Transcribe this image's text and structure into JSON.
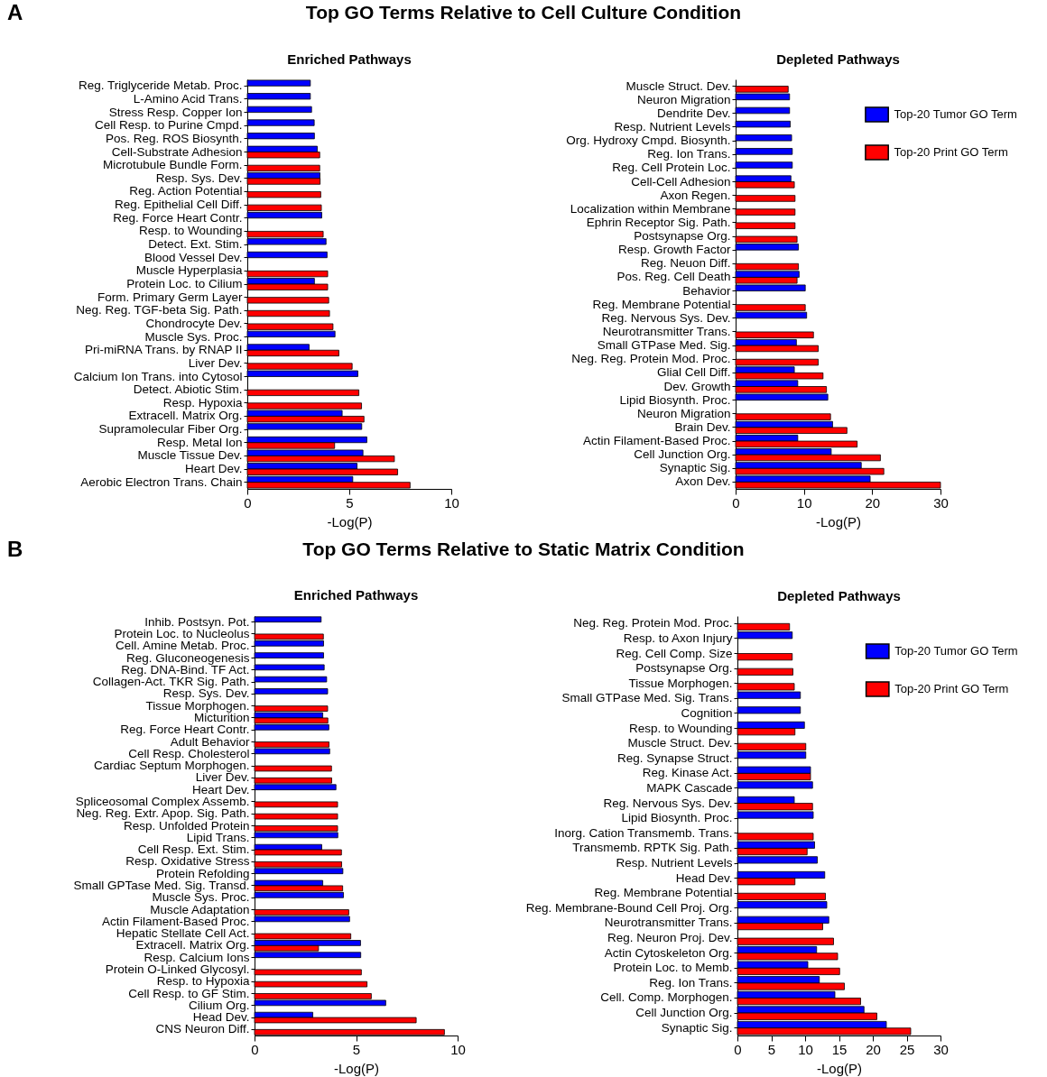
{
  "chart_data": [
    {
      "type": "bar",
      "orientation": "horizontal",
      "title": "Enriched Pathways",
      "xlabel": "-Log(P)",
      "annotations": [
        "A",
        "Top GO Terms Relative to Cell Culture Condition"
      ],
      "categories": [
        "Reg. Triglyceride Metab. Proc.",
        "L-Amino Acid Trans.",
        "Stress Resp. Copper Ion",
        "Cell Resp. to Purine Cmpd.",
        "Pos. Reg. ROS Biosynth.",
        "Cell-Substrate Adhesion",
        "Microtubule Bundle Form.",
        "Resp. Sys. Dev.",
        "Reg. Action Potential",
        "Reg. Epithelial Cell Diff.",
        "Reg. Force Heart Contr.",
        "Resp. to Wounding",
        "Detect. Ext. Stim.",
        "Blood Vessel Dev.",
        "Muscle Hyperplasia",
        "Protein Loc. to Cilium",
        "Form. Primary Germ Layer",
        "Neg. Reg. TGF-beta Sig. Path.",
        "Chondrocyte Dev.",
        "Muscle Sys. Proc.",
        "Pri-miRNA Trans. by RNAP II",
        "Liver Dev.",
        "Calcium Ion Trans. into Cytosol",
        "Detect. Abiotic Stim.",
        "Resp. Hypoxia",
        "Extracell. Matrix Org.",
        "Supramolecular Fiber Org.",
        "Resp. Metal Ion",
        "Muscle Tissue Dev.",
        "Heart Dev.",
        "Aerobic Electron Trans. Chain"
      ],
      "series": [
        {
          "color": "#0000ff",
          "values": [
            3.09,
            3.09,
            3.15,
            3.28,
            3.29,
            3.43,
            null,
            3.56,
            null,
            null,
            3.65,
            null,
            3.86,
            3.91,
            null,
            3.29,
            null,
            null,
            null,
            4.3,
            3.03,
            null,
            5.42,
            null,
            null,
            4.65,
            5.61,
            5.86,
            5.67,
            5.38,
            5.17
          ]
        },
        {
          "color": "#ff0000",
          "values": [
            null,
            null,
            null,
            null,
            null,
            3.55,
            3.55,
            3.57,
            3.6,
            3.63,
            null,
            3.72,
            null,
            null,
            3.94,
            3.94,
            3.99,
            4.03,
            4.2,
            null,
            4.49,
            5.14,
            null,
            5.47,
            5.6,
            5.72,
            null,
            4.28,
            7.21,
            7.37,
            7.98
          ]
        }
      ],
      "xlim": [
        0,
        10
      ],
      "xticks": [
        0,
        5,
        10
      ]
    },
    {
      "type": "bar",
      "orientation": "horizontal",
      "title": "Depleted Pathways",
      "xlabel": "-Log(P)",
      "legend": "top right",
      "categories": [
        "Muscle Struct. Dev.",
        "Neuron Migration",
        "Dendrite Dev.",
        "Resp. Nutrient Levels",
        "Org. Hydroxy Cmpd. Biosynth.",
        "Reg. Ion Trans.",
        "Reg. Cell Protein Loc.",
        "Cell-Cell Adhesion",
        "Axon Regen.",
        "Localization within Membrane",
        "Ephrin Receptor Sig. Path.",
        "Postsynapse Org.",
        "Resp. Growth Factor",
        "Reg. Neuon Diff.",
        "Pos. Reg. Cell Death",
        "Behavior",
        "Reg. Membrane Potential",
        "Reg. Nervous Sys. Dev.",
        "Neurotransmitter Trans.",
        "Small GTPase Med. Sig.",
        "Neg. Reg. Protein Mod. Proc.",
        "Glial Cell Diff.",
        "Dev. Growth",
        "Lipid Biosynth. Proc.",
        "Neuron Migration",
        "Brain Dev.",
        "Actin Filament-Based Proc.",
        "Cell Junction Org.",
        "Synaptic Sig.",
        "Axon Dev."
      ],
      "series": [
        {
          "name": "Top-20 Tumor GO Term",
          "color": "#0000ff",
          "values": [
            null,
            7.9,
            7.9,
            8.0,
            8.2,
            8.3,
            8.3,
            8.1,
            null,
            null,
            null,
            null,
            9.2,
            null,
            9.3,
            10.2,
            null,
            10.4,
            null,
            8.9,
            null,
            8.6,
            9.1,
            13.5,
            null,
            14.2,
            9.1,
            14.0,
            18.4,
            19.7
          ]
        },
        {
          "name": "Top-20 Print GO Term",
          "color": "#ff0000",
          "values": [
            7.7,
            null,
            null,
            null,
            null,
            null,
            null,
            8.6,
            8.7,
            8.7,
            8.7,
            9.0,
            null,
            9.2,
            9.0,
            null,
            10.2,
            null,
            11.4,
            12.1,
            12.1,
            12.8,
            13.3,
            null,
            13.9,
            16.3,
            17.8,
            21.2,
            21.7,
            30.0
          ]
        }
      ],
      "xlim": [
        0,
        30
      ],
      "xticks": [
        0,
        10,
        20,
        30
      ]
    },
    {
      "type": "bar",
      "orientation": "horizontal",
      "title": "Enriched Pathways",
      "xlabel": "-Log(P)",
      "annotations": [
        "B",
        "Top GO Terms Relative to Static Matrix Condition"
      ],
      "categories": [
        "Inhib. Postsyn. Pot.",
        "Protein Loc. to Nucleolus",
        "Cell. Amine Metab. Proc.",
        "Reg. Gluconeogenesis",
        "Reg. DNA-Bind. TF Act.",
        "Collagen-Act. TKR Sig. Path.",
        "Resp. Sys. Dev.",
        "Tissue Morphogen.",
        "Micturition",
        "Reg. Force Heart Contr.",
        "Adult Behavior",
        "Cell Resp. Cholesterol",
        "Cardiac Septum Morphogen.",
        "Liver Dev.",
        "Heart Dev.",
        "Spliceosomal Complex Assemb.",
        "Neg. Reg. Extr. Apop. Sig. Path.",
        "Resp. Unfolded Protein",
        "Lipid Trans.",
        "Cell Resp. Ext. Stim.",
        "Resp. Oxidative Stress",
        "Protein Refolding",
        "Small GPTase Med. Sig. Transd.",
        "Muscle Sys. Proc.",
        "Muscle Adaptation",
        "Actin Filament-Based Proc.",
        "Hepatic Stellate Cell Act.",
        "Extracell. Matrix Org.",
        "Resp. Calcium Ions",
        "Protein O-Linked Glycosyl.",
        "Resp. to Hypoxia",
        "Cell Resp. to GF Stim.",
        "Cilium Org.",
        "Head Dev.",
        "CNS Neuron Diff."
      ],
      "series": [
        {
          "color": "#0000ff",
          "values": [
            3.28,
            null,
            3.4,
            3.4,
            3.43,
            3.55,
            3.6,
            null,
            3.36,
            3.66,
            null,
            3.7,
            null,
            null,
            4.01,
            null,
            null,
            null,
            4.1,
            3.31,
            null,
            4.35,
            3.36,
            4.38,
            null,
            4.68,
            null,
            5.22,
            5.23,
            null,
            null,
            null,
            6.46,
            2.87,
            null
          ]
        },
        {
          "color": "#ff0000",
          "values": [
            null,
            3.39,
            null,
            null,
            null,
            null,
            null,
            3.6,
            3.61,
            null,
            3.67,
            null,
            3.79,
            3.8,
            null,
            4.09,
            4.09,
            4.09,
            null,
            4.28,
            4.29,
            null,
            4.34,
            null,
            4.64,
            null,
            4.74,
            3.15,
            null,
            5.26,
            5.54,
            5.75,
            null,
            7.96,
            9.35
          ]
        }
      ],
      "xlim": [
        0,
        10
      ],
      "xticks": [
        0,
        5,
        10
      ]
    },
    {
      "type": "bar",
      "orientation": "horizontal",
      "title": "Depleted Pathways",
      "xlabel": "-Log(P)",
      "legend": "top right",
      "categories": [
        "Neg. Reg. Protein Mod. Proc.",
        "Resp. to Axon Injury",
        "Reg. Cell Comp. Size",
        "Postsynapse Org.",
        "Tissue Morphogen.",
        "Small GTPase Med. Sig. Trans.",
        "Cognition",
        "Resp. to Wounding",
        "Muscle Struct. Dev.",
        "Reg. Synapse Struct.",
        "Reg. Kinase Act.",
        "MAPK Cascade",
        "Reg. Nervous Sys. Dev.",
        "Lipid Biosynth. Proc.",
        "Inorg. Cation Transmemb. Trans.",
        "Transmemb. RPTK Sig. Path.",
        "Resp. Nutrient Levels",
        "Head Dev.",
        "Reg. Membrane Potential",
        "Reg. Membrane-Bound Cell Proj. Org.",
        "Neurotransmitter Trans.",
        "Reg. Neuron Proj. Dev.",
        "Actin Cytoskeleton Org.",
        "Protein Loc. to Memb.",
        "Reg. Ion Trans.",
        "Cell. Comp. Morphogen.",
        "Cell Junction Org.",
        "Synaptic Sig."
      ],
      "series": [
        {
          "name": "Top-20 Tumor GO Term",
          "color": "#0000ff",
          "values": [
            null,
            8.1,
            null,
            null,
            null,
            9.3,
            9.3,
            9.9,
            null,
            10.1,
            10.8,
            11.1,
            8.4,
            11.2,
            null,
            11.4,
            11.8,
            12.9,
            null,
            13.2,
            13.5,
            null,
            11.7,
            10.4,
            12.1,
            14.4,
            18.7,
            22.0
          ]
        },
        {
          "name": "Top-20 Print GO Term",
          "color": "#ff0000",
          "values": [
            7.7,
            null,
            8.1,
            8.2,
            8.4,
            null,
            null,
            8.5,
            10.1,
            null,
            10.8,
            null,
            11.1,
            null,
            11.2,
            10.3,
            null,
            8.5,
            13.0,
            null,
            12.6,
            14.2,
            14.8,
            15.1,
            15.8,
            18.2,
            20.6,
            25.6
          ]
        }
      ],
      "xlim": [
        0,
        30
      ],
      "xticks": [
        0,
        5,
        10,
        15,
        20,
        25,
        30
      ]
    }
  ]
}
